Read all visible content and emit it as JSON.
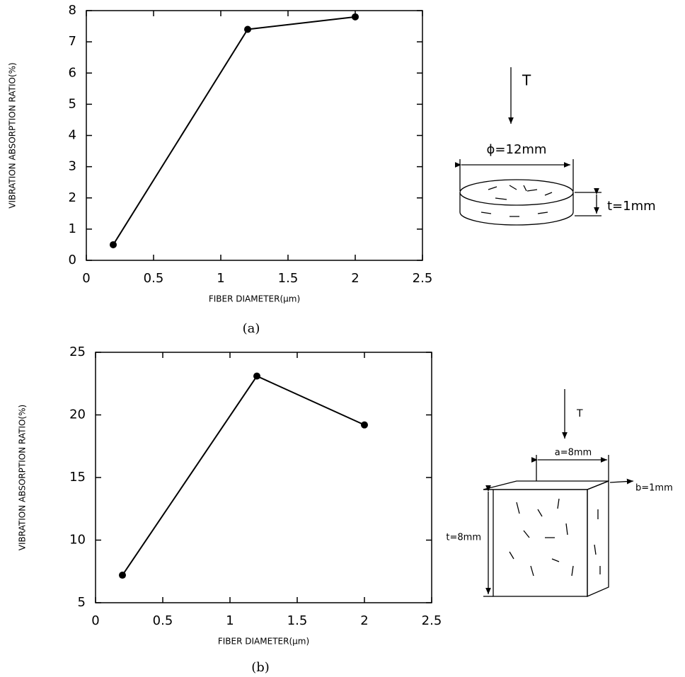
{
  "chart_data": [
    {
      "type": "line",
      "caption": "(a)",
      "xlabel": "FIBER DIAMETER(μm)",
      "ylabel": "VIBRATION ABSORPTION RATIO(%)",
      "x": [
        0.2,
        1.2,
        2
      ],
      "values": [
        0.5,
        7.4,
        7.8
      ],
      "color": "#000000",
      "xlim": [
        0,
        2.5
      ],
      "ylim": [
        0,
        8
      ],
      "xticks": [
        0,
        0.5,
        1,
        1.5,
        2,
        2.5
      ],
      "yticks": [
        0,
        1,
        2,
        3,
        4,
        5,
        6,
        7,
        8
      ]
    },
    {
      "type": "line",
      "caption": "(b)",
      "xlabel": "FIBER DIAMETER(μm)",
      "ylabel": "VIBRATION ABSORPTION RATIO(%)",
      "x": [
        0.2,
        1.2,
        2
      ],
      "values": [
        7.2,
        23.1,
        19.2
      ],
      "color": "#000000",
      "xlim": [
        0,
        2.5
      ],
      "ylim": [
        5,
        25
      ],
      "xticks": [
        0,
        0.5,
        1,
        1.5,
        2,
        2.5
      ],
      "yticks": [
        5,
        10,
        15,
        20,
        25
      ]
    }
  ],
  "diagrams": [
    {
      "load": "T",
      "diameter": "ϕ=12mm",
      "thickness": "t=1mm"
    },
    {
      "load": "T",
      "width": "a=8mm",
      "depth": "b=1mm",
      "thickness": "t=8mm"
    }
  ]
}
